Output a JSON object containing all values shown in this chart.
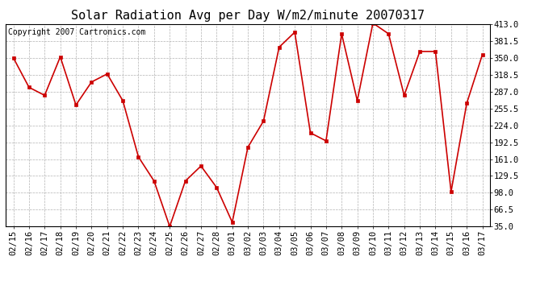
{
  "title": "Solar Radiation Avg per Day W/m2/minute 20070317",
  "copyright": "Copyright 2007 Cartronics.com",
  "labels": [
    "02/15",
    "02/16",
    "02/17",
    "02/18",
    "02/19",
    "02/20",
    "02/21",
    "02/22",
    "02/23",
    "02/24",
    "02/25",
    "02/26",
    "02/27",
    "02/28",
    "03/01",
    "03/02",
    "03/03",
    "03/04",
    "03/05",
    "03/06",
    "03/07",
    "03/08",
    "03/09",
    "03/10",
    "03/11",
    "03/12",
    "03/13",
    "03/14",
    "03/15",
    "03/16",
    "03/17"
  ],
  "values": [
    350,
    295,
    280,
    352,
    262,
    305,
    320,
    270,
    165,
    120,
    35,
    120,
    148,
    108,
    43,
    183,
    232,
    370,
    398,
    210,
    195,
    395,
    270,
    415,
    395,
    280,
    362,
    362,
    100,
    265,
    356
  ],
  "line_color": "#cc0000",
  "marker": "s",
  "marker_size": 3,
  "bg_color": "#ffffff",
  "grid_color": "#aaaaaa",
  "ylim": [
    35.0,
    413.0
  ],
  "yticks": [
    35.0,
    66.5,
    98.0,
    129.5,
    161.0,
    192.5,
    224.0,
    255.5,
    287.0,
    318.5,
    350.0,
    381.5,
    413.0
  ],
  "title_fontsize": 11,
  "copyright_fontsize": 7,
  "tick_fontsize": 7.5
}
